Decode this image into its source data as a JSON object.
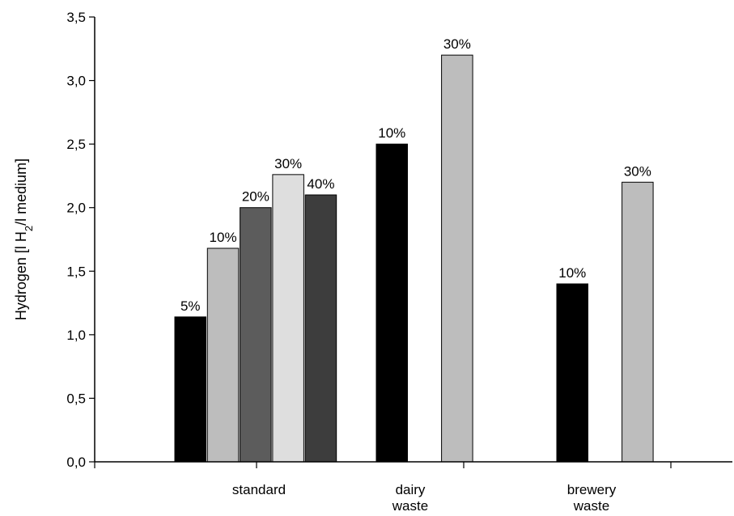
{
  "chart_data": {
    "type": "bar",
    "title": "",
    "xlabel": "",
    "ylabel": {
      "prefix": "Hydrogen [l H",
      "subscript": "2",
      "suffix": "/l medium]"
    },
    "ylim": [
      0,
      3.5
    ],
    "yticks": [
      {
        "value": 0.0,
        "label": "0,0"
      },
      {
        "value": 0.5,
        "label": "0,5"
      },
      {
        "value": 1.0,
        "label": "1,0"
      },
      {
        "value": 1.5,
        "label": "1,5"
      },
      {
        "value": 2.0,
        "label": "2,0"
      },
      {
        "value": 2.5,
        "label": "2,5"
      },
      {
        "value": 3.0,
        "label": "3,0"
      },
      {
        "value": 3.5,
        "label": "3,5"
      }
    ],
    "grid": false,
    "legend": "none",
    "categories": [
      {
        "label": [
          "standard"
        ],
        "center_x": 0.5
      },
      {
        "label": [
          "dairy",
          "waste"
        ],
        "center_x": 1.5
      },
      {
        "label": [
          "brewery",
          "waste"
        ],
        "center_x": 2.5
      }
    ],
    "bars": [
      {
        "category": "standard",
        "label": "5%",
        "value": 1.14,
        "color": "#000000"
      },
      {
        "category": "standard",
        "label": "10%",
        "value": 1.68,
        "color": "#bdbdbd"
      },
      {
        "category": "standard",
        "label": "20%",
        "value": 2.0,
        "color": "#5c5c5c"
      },
      {
        "category": "standard",
        "label": "30%",
        "value": 2.26,
        "color": "#dedede"
      },
      {
        "category": "standard",
        "label": "40%",
        "value": 2.1,
        "color": "#3d3d3d"
      },
      {
        "category": "dairy waste",
        "label": "10%",
        "value": 2.5,
        "color": "#000000"
      },
      {
        "category": "dairy waste",
        "label": "30%",
        "value": 3.2,
        "color": "#bdbdbd"
      },
      {
        "category": "brewery waste",
        "label": "10%",
        "value": 1.4,
        "color": "#000000"
      },
      {
        "category": "brewery waste",
        "label": "30%",
        "value": 2.2,
        "color": "#bdbdbd"
      }
    ]
  }
}
